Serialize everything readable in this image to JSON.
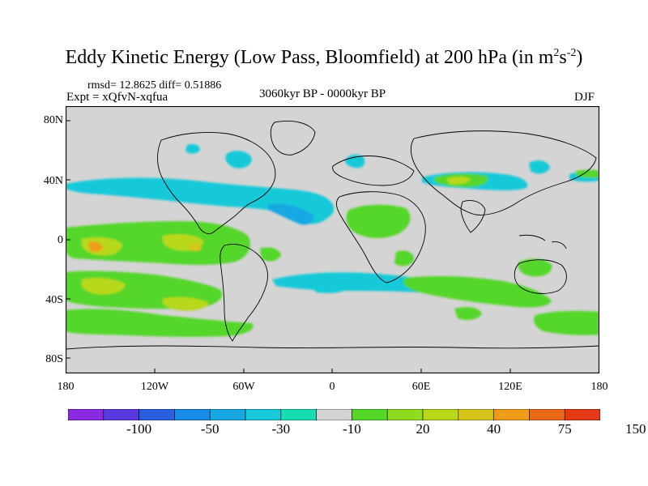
{
  "title": {
    "main": "Eddy Kinetic Energy (Low Pass, Bloomfield) at 200 hPa (in m",
    "sup1": "2",
    "mid": "s",
    "sup2": "-2",
    "close": ")"
  },
  "stats": "rmsd= 12.8625 diff= 0.51886",
  "experiment": "Expt = xQfvN-xqfua",
  "period": "3060kyr BP - 0000kyr BP",
  "season": "DJF",
  "map": {
    "ocean_color": "#d4d4d4",
    "coast_color": "#000000",
    "lat_labels": [
      "80N",
      "40N",
      "0",
      "40S",
      "80S"
    ],
    "lon_labels": [
      "180",
      "120W",
      "60W",
      "0",
      "60E",
      "120E",
      "180"
    ]
  },
  "colorbar": {
    "colors": [
      "#8a2be2",
      "#5a3ae0",
      "#2a5fe0",
      "#1a8be6",
      "#17a8e3",
      "#17c9d9",
      "#15dfb0",
      "#d3d3d3",
      "#55d62a",
      "#8fdc1f",
      "#b8d81a",
      "#d7c41c",
      "#ee9c1a",
      "#ec6a17",
      "#e13a14"
    ],
    "labels": [
      "-100",
      "-50",
      "-30",
      "-10",
      "20",
      "40",
      "75",
      "150"
    ]
  }
}
